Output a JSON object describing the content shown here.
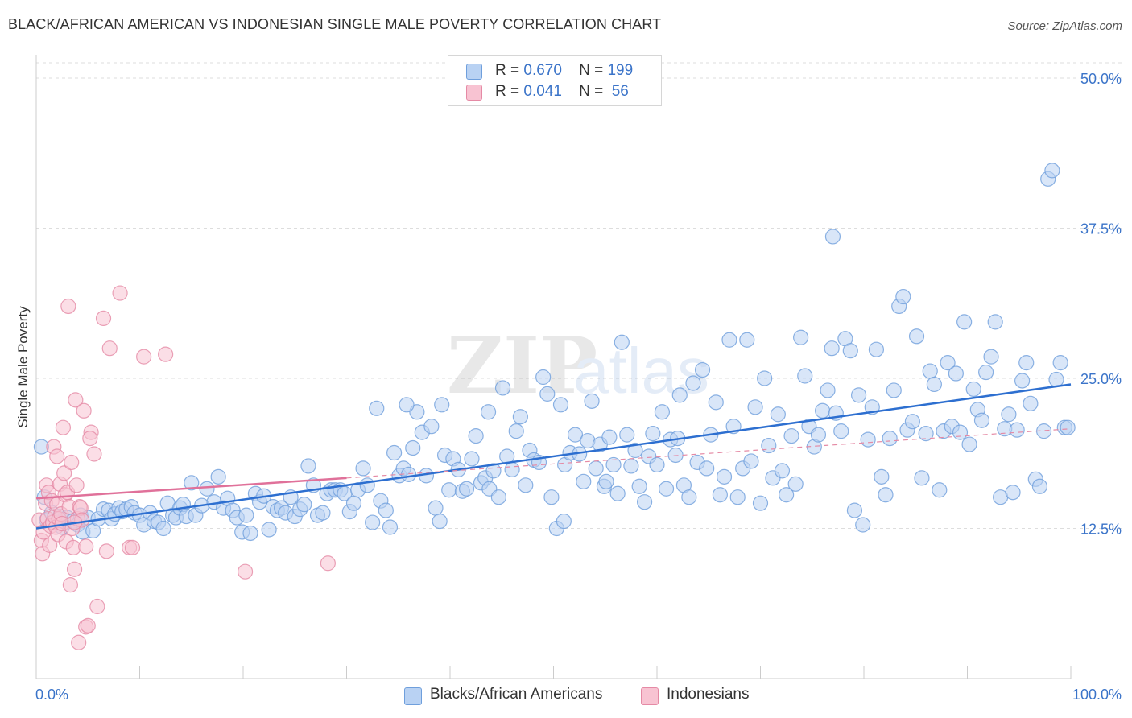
{
  "title": "BLACK/AFRICAN AMERICAN VS INDONESIAN SINGLE MALE POVERTY CORRELATION CHART",
  "source": "Source: ZipAtlas.com",
  "watermark": {
    "zip": "ZIP",
    "atlas": "atlas"
  },
  "legend": {
    "rows": [
      {
        "r_label": "R =",
        "r_value": "0.670",
        "n_label": "N =",
        "n_value": "199",
        "color": "#6f9fdc",
        "fill": "#b9d2f3"
      },
      {
        "r_label": "R =",
        "r_value": "0.041",
        "n_label": "N =",
        "n_value": " 56",
        "color": "#e58aa5",
        "fill": "#f8c3d2"
      }
    ]
  },
  "bottom_legend": [
    {
      "label": "Blacks/African Americans",
      "color": "#6f9fdc",
      "fill": "#b9d2f3"
    },
    {
      "label": "Indonesians",
      "color": "#e58aa5",
      "fill": "#f8c3d2"
    }
  ],
  "chart_data": {
    "type": "scatter",
    "title": "BLACK/AFRICAN AMERICAN VS INDONESIAN SINGLE MALE POVERTY CORRELATION CHART",
    "xlabel": "",
    "ylabel": "Single Male Poverty",
    "xlim": [
      0,
      100
    ],
    "ylim": [
      0,
      50
    ],
    "x_tick_labels": [
      "0.0%",
      "100.0%"
    ],
    "y_ticks": [
      12.5,
      25.0,
      37.5,
      50.0
    ],
    "y_tick_labels": [
      "12.5%",
      "25.0%",
      "37.5%",
      "50.0%"
    ],
    "grid": true,
    "series": [
      {
        "name": "Blacks/African Americans",
        "color": "#6f9fdc",
        "fill": "#b9d2f3",
        "trend": {
          "x": [
            0,
            100
          ],
          "y": [
            12.5,
            24.5
          ],
          "dashed_extension": false
        },
        "points": [
          [
            0.5,
            19.3
          ],
          [
            0.8,
            15.1
          ],
          [
            1.0,
            13.2
          ],
          [
            1.5,
            13.8
          ],
          [
            2.0,
            13.0
          ],
          [
            2.3,
            13.5
          ],
          [
            2.5,
            12.6
          ],
          [
            3.0,
            13.4
          ],
          [
            3.5,
            13.1
          ],
          [
            4.0,
            12.8
          ],
          [
            4.3,
            13.6
          ],
          [
            4.5,
            12.2
          ],
          [
            5.0,
            13.4
          ],
          [
            5.5,
            12.3
          ],
          [
            6.0,
            13.3
          ],
          [
            6.5,
            14.1
          ],
          [
            7.0,
            14.0
          ],
          [
            7.3,
            13.3
          ],
          [
            7.6,
            13.7
          ],
          [
            8.0,
            14.2
          ],
          [
            8.3,
            13.9
          ],
          [
            8.7,
            14.1
          ],
          [
            9.2,
            14.3
          ],
          [
            9.5,
            13.8
          ],
          [
            10.0,
            13.6
          ],
          [
            10.4,
            12.8
          ],
          [
            11.0,
            13.8
          ],
          [
            11.4,
            13.1
          ],
          [
            11.8,
            13.0
          ],
          [
            12.3,
            12.5
          ],
          [
            12.7,
            14.6
          ],
          [
            13.2,
            13.6
          ],
          [
            13.5,
            13.4
          ],
          [
            13.9,
            14.2
          ],
          [
            14.2,
            14.5
          ],
          [
            14.5,
            13.5
          ],
          [
            15.0,
            16.3
          ],
          [
            15.4,
            13.6
          ],
          [
            16.0,
            14.4
          ],
          [
            16.5,
            15.8
          ],
          [
            17.2,
            14.7
          ],
          [
            17.6,
            16.8
          ],
          [
            18.1,
            14.2
          ],
          [
            18.5,
            15.0
          ],
          [
            19.0,
            14.0
          ],
          [
            19.4,
            13.4
          ],
          [
            19.9,
            12.2
          ],
          [
            20.3,
            13.6
          ],
          [
            20.7,
            12.1
          ],
          [
            21.2,
            15.4
          ],
          [
            21.6,
            14.7
          ],
          [
            22.0,
            15.2
          ],
          [
            22.5,
            12.4
          ],
          [
            22.9,
            14.3
          ],
          [
            23.3,
            14.0
          ],
          [
            23.7,
            14.2
          ],
          [
            24.1,
            13.8
          ],
          [
            24.6,
            15.1
          ],
          [
            25.0,
            13.5
          ],
          [
            25.5,
            14.1
          ],
          [
            25.9,
            14.5
          ],
          [
            26.3,
            17.7
          ],
          [
            26.8,
            16.1
          ],
          [
            27.2,
            13.6
          ],
          [
            27.7,
            13.8
          ],
          [
            28.1,
            15.4
          ],
          [
            28.5,
            15.7
          ],
          [
            28.9,
            15.7
          ],
          [
            29.4,
            15.7
          ],
          [
            29.8,
            15.4
          ],
          [
            30.3,
            13.9
          ],
          [
            30.7,
            14.6
          ],
          [
            31.1,
            15.7
          ],
          [
            31.6,
            17.5
          ],
          [
            32.0,
            16.1
          ],
          [
            32.5,
            13.0
          ],
          [
            32.9,
            22.5
          ],
          [
            33.3,
            14.8
          ],
          [
            33.8,
            14.0
          ],
          [
            34.2,
            12.6
          ],
          [
            34.6,
            18.8
          ],
          [
            35.1,
            16.9
          ],
          [
            35.5,
            17.5
          ],
          [
            36.0,
            17.0
          ],
          [
            36.4,
            19.2
          ],
          [
            36.8,
            22.2
          ],
          [
            37.3,
            20.5
          ],
          [
            37.7,
            16.9
          ],
          [
            38.2,
            21.0
          ],
          [
            38.6,
            14.2
          ],
          [
            39.0,
            13.1
          ],
          [
            39.5,
            18.6
          ],
          [
            39.9,
            15.7
          ],
          [
            40.3,
            18.3
          ],
          [
            40.8,
            17.4
          ],
          [
            41.2,
            15.6
          ],
          [
            41.6,
            15.8
          ],
          [
            42.1,
            18.3
          ],
          [
            42.5,
            20.2
          ],
          [
            43.0,
            16.3
          ],
          [
            43.4,
            16.7
          ],
          [
            43.8,
            15.8
          ],
          [
            44.2,
            17.3
          ],
          [
            44.7,
            15.1
          ],
          [
            45.1,
            24.2
          ],
          [
            45.5,
            18.5
          ],
          [
            46.0,
            17.4
          ],
          [
            46.4,
            20.6
          ],
          [
            46.8,
            21.8
          ],
          [
            47.3,
            16.1
          ],
          [
            47.7,
            19.0
          ],
          [
            48.1,
            18.2
          ],
          [
            48.6,
            18.0
          ],
          [
            49.0,
            25.1
          ],
          [
            49.4,
            23.7
          ],
          [
            49.8,
            15.1
          ],
          [
            50.3,
            12.5
          ],
          [
            50.7,
            22.8
          ],
          [
            51.1,
            17.8
          ],
          [
            51.6,
            18.8
          ],
          [
            52.1,
            20.3
          ],
          [
            52.5,
            18.7
          ],
          [
            52.9,
            16.4
          ],
          [
            53.3,
            19.8
          ],
          [
            53.7,
            23.1
          ],
          [
            54.1,
            17.5
          ],
          [
            54.5,
            19.5
          ],
          [
            54.9,
            16.0
          ],
          [
            55.4,
            20.1
          ],
          [
            55.8,
            17.8
          ],
          [
            56.2,
            15.4
          ],
          [
            56.6,
            28.0
          ],
          [
            57.1,
            20.3
          ],
          [
            57.5,
            17.7
          ],
          [
            57.9,
            19.0
          ],
          [
            58.3,
            16.0
          ],
          [
            58.8,
            14.7
          ],
          [
            59.2,
            18.5
          ],
          [
            59.6,
            20.4
          ],
          [
            60.0,
            17.8
          ],
          [
            60.5,
            22.2
          ],
          [
            60.9,
            15.8
          ],
          [
            61.3,
            19.9
          ],
          [
            61.8,
            18.6
          ],
          [
            62.2,
            23.6
          ],
          [
            62.6,
            16.1
          ],
          [
            63.1,
            15.1
          ],
          [
            63.5,
            24.6
          ],
          [
            63.9,
            18.0
          ],
          [
            64.4,
            25.7
          ],
          [
            64.8,
            17.5
          ],
          [
            65.2,
            20.3
          ],
          [
            65.7,
            23.0
          ],
          [
            66.1,
            15.3
          ],
          [
            66.5,
            16.8
          ],
          [
            67.0,
            28.2
          ],
          [
            67.4,
            21.0
          ],
          [
            67.8,
            15.1
          ],
          [
            68.3,
            17.5
          ],
          [
            68.7,
            28.2
          ],
          [
            69.1,
            18.1
          ],
          [
            69.5,
            22.6
          ],
          [
            70.0,
            14.6
          ],
          [
            70.4,
            25.0
          ],
          [
            70.8,
            19.4
          ],
          [
            71.2,
            16.7
          ],
          [
            71.7,
            22.0
          ],
          [
            72.1,
            17.3
          ],
          [
            72.5,
            15.3
          ],
          [
            73.0,
            20.2
          ],
          [
            73.4,
            16.2
          ],
          [
            73.9,
            28.4
          ],
          [
            74.3,
            25.2
          ],
          [
            74.7,
            21.0
          ],
          [
            75.2,
            19.3
          ],
          [
            75.6,
            20.3
          ],
          [
            76.0,
            22.3
          ],
          [
            76.5,
            24.0
          ],
          [
            76.9,
            27.5
          ],
          [
            77.3,
            22.1
          ],
          [
            77.8,
            20.6
          ],
          [
            78.2,
            28.3
          ],
          [
            78.7,
            27.3
          ],
          [
            79.1,
            14.0
          ],
          [
            79.5,
            23.6
          ],
          [
            79.9,
            12.8
          ],
          [
            80.4,
            19.9
          ],
          [
            80.8,
            22.6
          ],
          [
            81.2,
            27.4
          ],
          [
            81.7,
            16.8
          ],
          [
            82.1,
            15.3
          ],
          [
            82.5,
            20.0
          ],
          [
            82.9,
            24.0
          ],
          [
            83.4,
            31.0
          ],
          [
            83.8,
            31.8
          ],
          [
            84.2,
            20.7
          ],
          [
            84.7,
            21.4
          ],
          [
            85.1,
            28.5
          ],
          [
            85.6,
            16.7
          ],
          [
            86.0,
            20.4
          ],
          [
            86.4,
            25.6
          ],
          [
            86.8,
            24.5
          ],
          [
            87.3,
            15.7
          ],
          [
            87.7,
            20.6
          ],
          [
            88.1,
            26.3
          ],
          [
            88.5,
            21.0
          ],
          [
            88.9,
            25.4
          ],
          [
            89.3,
            20.5
          ],
          [
            89.7,
            29.7
          ],
          [
            90.2,
            19.5
          ],
          [
            90.6,
            24.1
          ],
          [
            91.0,
            22.4
          ],
          [
            91.4,
            21.5
          ],
          [
            91.8,
            25.5
          ],
          [
            92.3,
            26.8
          ],
          [
            92.7,
            29.7
          ],
          [
            93.2,
            15.1
          ],
          [
            93.6,
            20.8
          ],
          [
            94.0,
            22.0
          ],
          [
            94.4,
            15.5
          ],
          [
            94.8,
            20.7
          ],
          [
            95.3,
            24.8
          ],
          [
            95.7,
            26.3
          ],
          [
            96.1,
            22.9
          ],
          [
            96.6,
            16.6
          ],
          [
            97.0,
            16.0
          ],
          [
            97.4,
            20.6
          ],
          [
            97.8,
            41.6
          ],
          [
            98.2,
            42.3
          ],
          [
            98.6,
            24.9
          ],
          [
            99.0,
            26.3
          ],
          [
            99.4,
            20.9
          ],
          [
            99.7,
            20.9
          ],
          [
            77.0,
            36.8
          ],
          [
            62.0,
            20.0
          ],
          [
            43.7,
            22.2
          ],
          [
            35.8,
            22.8
          ],
          [
            55.1,
            16.4
          ],
          [
            51.0,
            13.1
          ],
          [
            39.2,
            22.8
          ]
        ]
      },
      {
        "name": "Indonesians",
        "color": "#e58aa5",
        "fill": "#f8c3d2",
        "trend": {
          "x": [
            0,
            30
          ],
          "y": [
            15.0,
            16.7
          ],
          "dashed_extension": true,
          "extension_to": [
            100,
            20.8
          ]
        },
        "points": [
          [
            0.3,
            13.2
          ],
          [
            0.5,
            11.5
          ],
          [
            0.6,
            10.4
          ],
          [
            0.7,
            12.2
          ],
          [
            0.9,
            14.6
          ],
          [
            1.0,
            16.1
          ],
          [
            1.1,
            13.3
          ],
          [
            1.2,
            15.5
          ],
          [
            1.3,
            11.1
          ],
          [
            1.4,
            12.7
          ],
          [
            1.5,
            14.8
          ],
          [
            1.6,
            13.0
          ],
          [
            1.7,
            19.3
          ],
          [
            1.8,
            13.5
          ],
          [
            1.9,
            12.6
          ],
          [
            2.0,
            14.5
          ],
          [
            2.1,
            12.0
          ],
          [
            2.2,
            13.3
          ],
          [
            2.3,
            16.2
          ],
          [
            2.4,
            13.7
          ],
          [
            2.5,
            12.9
          ],
          [
            2.6,
            20.9
          ],
          [
            2.7,
            17.1
          ],
          [
            2.8,
            15.3
          ],
          [
            2.9,
            11.4
          ],
          [
            3.0,
            15.5
          ],
          [
            3.1,
            31.0
          ],
          [
            3.2,
            14.3
          ],
          [
            3.3,
            7.8
          ],
          [
            3.4,
            18.0
          ],
          [
            3.5,
            12.5
          ],
          [
            3.6,
            10.9
          ],
          [
            3.7,
            9.1
          ],
          [
            3.8,
            23.2
          ],
          [
            3.9,
            16.1
          ],
          [
            4.0,
            13.3
          ],
          [
            4.1,
            3.0
          ],
          [
            4.2,
            14.3
          ],
          [
            4.3,
            14.2
          ],
          [
            4.4,
            13.2
          ],
          [
            4.6,
            22.3
          ],
          [
            4.8,
            4.3
          ],
          [
            5.0,
            4.4
          ],
          [
            5.3,
            20.5
          ],
          [
            5.6,
            18.7
          ],
          [
            5.9,
            6.0
          ],
          [
            6.5,
            30.0
          ],
          [
            6.8,
            10.6
          ],
          [
            7.1,
            27.5
          ],
          [
            8.1,
            32.1
          ],
          [
            9.0,
            10.9
          ],
          [
            9.3,
            10.9
          ],
          [
            10.4,
            26.8
          ],
          [
            12.5,
            27.0
          ],
          [
            20.2,
            8.9
          ],
          [
            28.2,
            9.6
          ],
          [
            5.2,
            20.0
          ],
          [
            3.7,
            13.0
          ],
          [
            2.0,
            18.5
          ],
          [
            4.8,
            11.0
          ]
        ]
      }
    ]
  }
}
